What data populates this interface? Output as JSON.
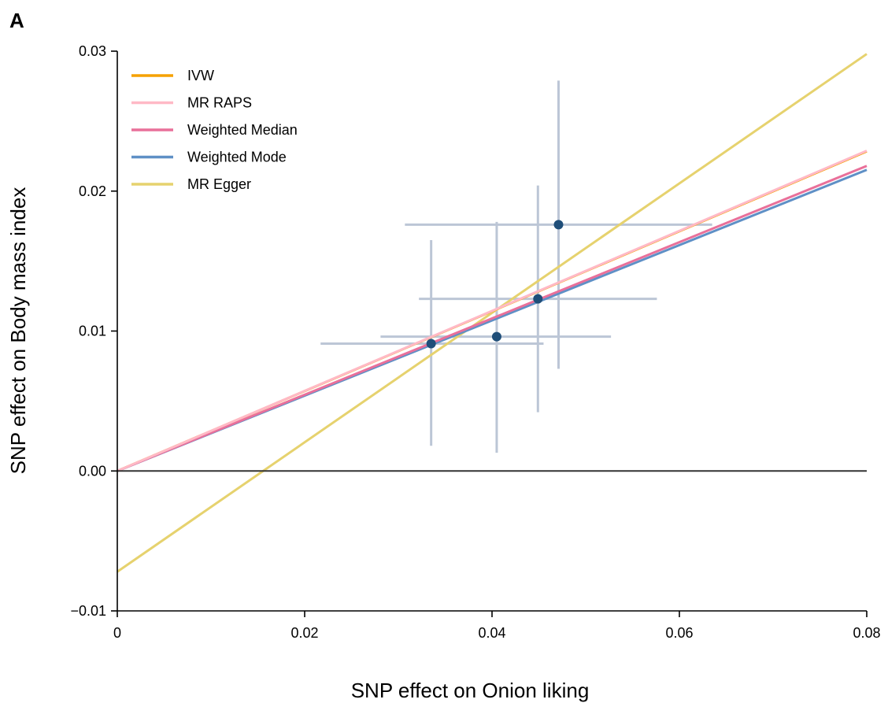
{
  "panel_label": "A",
  "chart_data": {
    "type": "scatter",
    "title": "",
    "xlabel": "SNP effect on Onion liking",
    "ylabel": "SNP effect on Body mass index",
    "xlim": [
      0,
      0.08
    ],
    "ylim": [
      -0.01,
      0.03
    ],
    "xticks": [
      0,
      0.02,
      0.04,
      0.06,
      0.08
    ],
    "xtick_labels": [
      "0",
      "0.02",
      "0.04",
      "0.06",
      "0.08"
    ],
    "yticks": [
      -0.01,
      0.0,
      0.01,
      0.02,
      0.03
    ],
    "ytick_labels": [
      "−0.01",
      "0.00",
      "0.01",
      "0.02",
      "0.03"
    ],
    "grid": false,
    "legend_position": "top-left",
    "points": [
      {
        "x": 0.0335,
        "y": 0.0091,
        "xerr_low": 0.0217,
        "xerr_high": 0.0455,
        "yerr_low": 0.0018,
        "yerr_high": 0.0165
      },
      {
        "x": 0.0405,
        "y": 0.0096,
        "xerr_low": 0.0281,
        "xerr_high": 0.0527,
        "yerr_low": 0.0013,
        "yerr_high": 0.0178
      },
      {
        "x": 0.0449,
        "y": 0.0123,
        "xerr_low": 0.0322,
        "xerr_high": 0.0576,
        "yerr_low": 0.0042,
        "yerr_high": 0.0204
      },
      {
        "x": 0.0471,
        "y": 0.0176,
        "xerr_low": 0.0307,
        "xerr_high": 0.0635,
        "yerr_low": 0.0073,
        "yerr_high": 0.0279
      }
    ],
    "series": [
      {
        "name": "IVW",
        "color": "#f5a100",
        "intercept": 0.0,
        "slope": 0.2855
      },
      {
        "name": "MR RAPS",
        "color": "#ffb9c6",
        "intercept": 0.0,
        "slope": 0.286
      },
      {
        "name": "Weighted Median",
        "color": "#e9709a",
        "intercept": 0.0,
        "slope": 0.2725
      },
      {
        "name": "Weighted Mode",
        "color": "#5f90c6",
        "intercept": 0.0,
        "slope": 0.269
      },
      {
        "name": "MR Egger",
        "color": "#e6d26e",
        "intercept": -0.0072,
        "slope": 0.4625
      }
    ],
    "point_color": "#1f4e79",
    "errorbar_color": "#bcc6d6"
  }
}
